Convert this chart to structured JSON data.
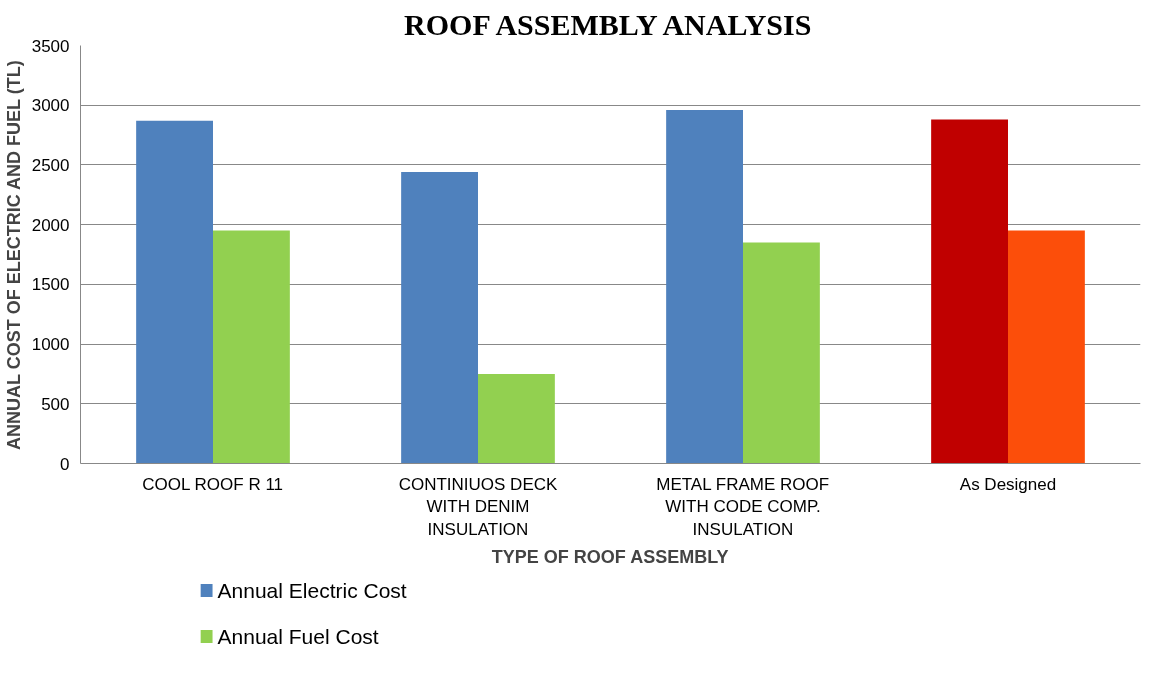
{
  "chart_data": {
    "type": "bar",
    "title": "ROOF ASSEMBLY ANALYSIS",
    "xlabel": "TYPE OF ROOF ASSEMBLY",
    "ylabel": "ANNUAL COST OF ELECTRIC AND FUEL (TL)",
    "categories": [
      "COOL ROOF R 11",
      "CONTINIUOS DECK WITH DENIM INSULATION",
      "METAL FRAME ROOF WITH CODE COMP. INSULATION",
      "As Designed"
    ],
    "series": [
      {
        "name": "Annual Electric Cost",
        "color": "#4f81bd",
        "colors": [
          "#4f81bd",
          "#4f81bd",
          "#4f81bd",
          "#c00000"
        ],
        "values": [
          2870,
          2440,
          2960,
          2880
        ]
      },
      {
        "name": "Annual Fuel Cost",
        "color": "#92d050",
        "colors": [
          "#92d050",
          "#92d050",
          "#92d050",
          "#fc4e0a"
        ],
        "values": [
          1950,
          750,
          1850,
          1950
        ]
      }
    ],
    "ylim": [
      0,
      3500
    ],
    "yticks": [
      0,
      500,
      1000,
      1500,
      2000,
      2500,
      3000,
      3500
    ],
    "grid": "y",
    "legend": "bottom left"
  }
}
